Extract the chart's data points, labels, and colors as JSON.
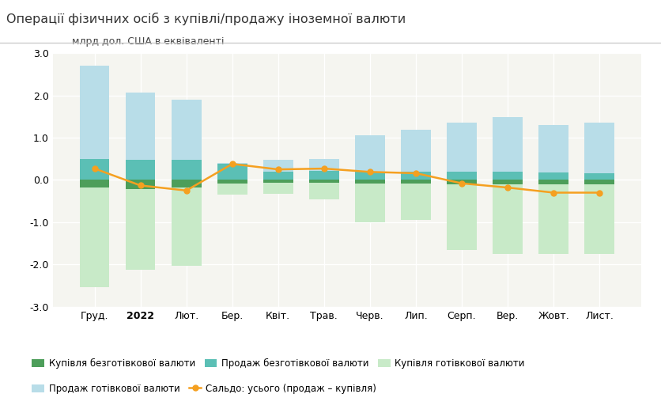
{
  "categories": [
    "Груд.",
    "2022",
    "Лют.",
    "Бер.",
    "Квіт.",
    "Трав.",
    "Черв.",
    "Лип.",
    "Серп.",
    "Вер.",
    "Жовт.",
    "Лист."
  ],
  "buy_cashless": [
    -0.18,
    -0.22,
    -0.18,
    -0.08,
    -0.07,
    -0.07,
    -0.08,
    -0.08,
    -0.1,
    -0.1,
    -0.1,
    -0.1
  ],
  "sell_cashless": [
    0.5,
    0.48,
    0.48,
    0.38,
    0.2,
    0.22,
    0.2,
    0.2,
    0.2,
    0.2,
    0.18,
    0.16
  ],
  "buy_cash": [
    -2.35,
    -1.9,
    -1.85,
    -0.27,
    -0.25,
    -0.38,
    -0.92,
    -0.87,
    -1.55,
    -1.65,
    -1.65,
    -1.65
  ],
  "sell_cash": [
    2.2,
    1.58,
    1.42,
    0.02,
    0.27,
    0.28,
    0.85,
    0.98,
    1.15,
    1.28,
    1.12,
    1.19
  ],
  "balance": [
    0.27,
    -0.13,
    -0.25,
    0.38,
    0.25,
    0.27,
    0.19,
    0.16,
    -0.08,
    -0.18,
    -0.3,
    -0.3
  ],
  "color_buy_cashless": "#4d9e5a",
  "color_sell_cashless": "#5bbfb5",
  "color_buy_cash": "#c8eac8",
  "color_sell_cash": "#b8dde8",
  "color_balance_line": "#f5a020",
  "color_balance_marker": "#f5a020",
  "title": "Операції фізичних осіб з купівлі/продажу іноземної валюти",
  "ylabel": "млрд дол. США в еквіваленті",
  "ylim": [
    -3.0,
    3.0
  ],
  "yticks": [
    -3.0,
    -2.0,
    -1.0,
    0.0,
    1.0,
    2.0,
    3.0
  ],
  "legend_labels": [
    "Купівля безготівкової валюти",
    "Продаж безготівкової валюти",
    "Купівля готівкової валюти",
    "Продаж готівкової валюти",
    "Сальдо: усього (продаж – купівля)"
  ],
  "background_color": "#f5f5f0",
  "plot_bg_color": "#f5f5f0",
  "grid_color": "#ffffff",
  "title_fontsize": 11.5,
  "axis_fontsize": 9
}
